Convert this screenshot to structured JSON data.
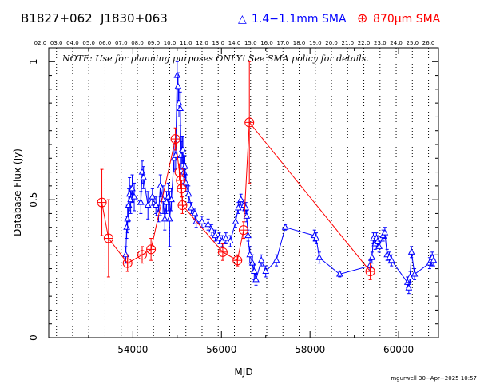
{
  "header": {
    "source_name": "B1827+062",
    "alt_name": "J1830+063",
    "legend_blue_marker": "△",
    "legend_blue_label": "1.4−1.1mm SMA",
    "legend_red_marker": "⊕",
    "legend_red_label": "870µm SMA"
  },
  "note": "NOTE: Use for planning purposes ONLY! See SMA policy for details.",
  "footer": "mgurwell 30−Apr−2025 10:57",
  "colors": {
    "blue": "#0000ff",
    "red": "#ff0000",
    "axis": "#000000"
  },
  "chart_data": {
    "type": "scatter",
    "xlabel": "MJD",
    "ylabel": "Database Flux (Jy)",
    "xlim": [
      52100,
      60900
    ],
    "ylim": [
      0,
      1.05
    ],
    "x_ticks": [
      "54000",
      "56000",
      "58000",
      "60000"
    ],
    "x_tick_values": [
      54000,
      56000,
      58000,
      60000
    ],
    "y_ticks": [
      "0",
      "0.5",
      "1"
    ],
    "y_tick_values": [
      0,
      0.5,
      1.0
    ],
    "top_axis_labels": [
      "02.0",
      "03.0",
      "04.0",
      "05.0",
      "06.0",
      "07.0",
      "08.0",
      "09.0",
      "10.0",
      "11.0",
      "12.0",
      "13.0",
      "14.0",
      "15.0",
      "16.0",
      "17.0",
      "18.0",
      "19.0",
      "20.0",
      "21.0",
      "22.0",
      "23.0",
      "24.0",
      "25.0",
      "26.0"
    ],
    "year_lines_mjd": [
      52275,
      52640,
      53005,
      53371,
      53736,
      54101,
      54466,
      54832,
      55197,
      55562,
      55927,
      56293,
      56658,
      57023,
      57388,
      57754,
      58119,
      58484,
      58849,
      59215,
      59580,
      59945,
      60310,
      60676
    ],
    "series": [
      {
        "name": "1.4−1.1mm SMA",
        "marker": "triangle",
        "color": "#0000ff",
        "points": [
          {
            "x": 53840,
            "y": 0.3,
            "e": 0.03
          },
          {
            "x": 53860,
            "y": 0.4,
            "e": 0.04
          },
          {
            "x": 53880,
            "y": 0.43,
            "e": 0.05
          },
          {
            "x": 53905,
            "y": 0.48,
            "e": 0.06
          },
          {
            "x": 53925,
            "y": 0.52,
            "e": 0.06
          },
          {
            "x": 53950,
            "y": 0.5,
            "e": 0.05
          },
          {
            "x": 53985,
            "y": 0.54,
            "e": 0.05
          },
          {
            "x": 54030,
            "y": 0.51,
            "e": 0.05
          },
          {
            "x": 54180,
            "y": 0.49,
            "e": 0.04
          },
          {
            "x": 54210,
            "y": 0.6,
            "e": 0.04
          },
          {
            "x": 54240,
            "y": 0.58,
            "e": 0.04
          },
          {
            "x": 54340,
            "y": 0.48,
            "e": 0.05
          },
          {
            "x": 54440,
            "y": 0.51,
            "e": 0.03
          },
          {
            "x": 54520,
            "y": 0.48,
            "e": 0.03
          },
          {
            "x": 54580,
            "y": 0.45,
            "e": 0.03
          },
          {
            "x": 54620,
            "y": 0.55,
            "e": 0.04
          },
          {
            "x": 54680,
            "y": 0.5,
            "e": 0.05
          },
          {
            "x": 54720,
            "y": 0.43,
            "e": 0.04
          },
          {
            "x": 54760,
            "y": 0.49,
            "e": 0.04
          },
          {
            "x": 54800,
            "y": 0.51,
            "e": 0.05
          },
          {
            "x": 54830,
            "y": 0.43,
            "e": 0.1
          },
          {
            "x": 54870,
            "y": 0.5,
            "e": 0.04
          },
          {
            "x": 54930,
            "y": 0.65,
            "e": 0.05
          },
          {
            "x": 54965,
            "y": 0.66,
            "e": 0.05
          },
          {
            "x": 55000,
            "y": 0.95,
            "e": 0.05
          },
          {
            "x": 55020,
            "y": 0.91,
            "e": 0.05
          },
          {
            "x": 55040,
            "y": 0.85,
            "e": 0.05
          },
          {
            "x": 55070,
            "y": 0.83,
            "e": 0.06
          },
          {
            "x": 55090,
            "y": 0.66,
            "e": 0.05
          },
          {
            "x": 55110,
            "y": 0.68,
            "e": 0.05
          },
          {
            "x": 55130,
            "y": 0.68,
            "e": 0.05
          },
          {
            "x": 55150,
            "y": 0.6,
            "e": 0.04
          },
          {
            "x": 55175,
            "y": 0.62,
            "e": 0.04
          },
          {
            "x": 55200,
            "y": 0.56,
            "e": 0.03
          },
          {
            "x": 55260,
            "y": 0.52,
            "e": 0.03
          },
          {
            "x": 55320,
            "y": 0.47,
            "e": 0.02
          },
          {
            "x": 55400,
            "y": 0.45,
            "e": 0.02
          },
          {
            "x": 55430,
            "y": 0.42,
            "e": 0.02
          },
          {
            "x": 55560,
            "y": 0.42,
            "e": 0.02
          },
          {
            "x": 55700,
            "y": 0.41,
            "e": 0.02
          },
          {
            "x": 55780,
            "y": 0.39,
            "e": 0.02
          },
          {
            "x": 55860,
            "y": 0.37,
            "e": 0.02
          },
          {
            "x": 55950,
            "y": 0.36,
            "e": 0.02
          },
          {
            "x": 56020,
            "y": 0.35,
            "e": 0.02
          },
          {
            "x": 56100,
            "y": 0.36,
            "e": 0.02
          },
          {
            "x": 56200,
            "y": 0.35,
            "e": 0.02
          },
          {
            "x": 56320,
            "y": 0.42,
            "e": 0.02
          },
          {
            "x": 56380,
            "y": 0.47,
            "e": 0.02
          },
          {
            "x": 56440,
            "y": 0.5,
            "e": 0.02
          },
          {
            "x": 56510,
            "y": 0.48,
            "e": 0.02
          },
          {
            "x": 56550,
            "y": 0.47,
            "e": 0.02
          },
          {
            "x": 56570,
            "y": 0.44,
            "e": 0.02
          },
          {
            "x": 56600,
            "y": 0.37,
            "e": 0.02
          },
          {
            "x": 56640,
            "y": 0.3,
            "e": 0.03
          },
          {
            "x": 56700,
            "y": 0.27,
            "e": 0.03
          },
          {
            "x": 56740,
            "y": 0.24,
            "e": 0.03
          },
          {
            "x": 56780,
            "y": 0.21,
            "e": 0.02
          },
          {
            "x": 56900,
            "y": 0.28,
            "e": 0.02
          },
          {
            "x": 57000,
            "y": 0.24,
            "e": 0.02
          },
          {
            "x": 57240,
            "y": 0.28,
            "e": 0.02
          },
          {
            "x": 57440,
            "y": 0.4,
            "e": 0.01
          },
          {
            "x": 58100,
            "y": 0.37,
            "e": 0.02
          },
          {
            "x": 58140,
            "y": 0.36,
            "e": 0.02
          },
          {
            "x": 58210,
            "y": 0.29,
            "e": 0.02
          },
          {
            "x": 58670,
            "y": 0.23,
            "e": 0.01
          },
          {
            "x": 59350,
            "y": 0.26,
            "e": 0.02
          },
          {
            "x": 59400,
            "y": 0.29,
            "e": 0.02
          },
          {
            "x": 59430,
            "y": 0.36,
            "e": 0.02
          },
          {
            "x": 59470,
            "y": 0.34,
            "e": 0.02
          },
          {
            "x": 59500,
            "y": 0.36,
            "e": 0.02
          },
          {
            "x": 59530,
            "y": 0.35,
            "e": 0.02
          },
          {
            "x": 59560,
            "y": 0.33,
            "e": 0.02
          },
          {
            "x": 59650,
            "y": 0.37,
            "e": 0.02
          },
          {
            "x": 59690,
            "y": 0.38,
            "e": 0.02
          },
          {
            "x": 59740,
            "y": 0.3,
            "e": 0.02
          },
          {
            "x": 59790,
            "y": 0.29,
            "e": 0.02
          },
          {
            "x": 59840,
            "y": 0.28,
            "e": 0.02
          },
          {
            "x": 60200,
            "y": 0.2,
            "e": 0.02
          },
          {
            "x": 60230,
            "y": 0.18,
            "e": 0.02
          },
          {
            "x": 60260,
            "y": 0.22,
            "e": 0.02
          },
          {
            "x": 60290,
            "y": 0.31,
            "e": 0.02
          },
          {
            "x": 60360,
            "y": 0.23,
            "e": 0.02
          },
          {
            "x": 60700,
            "y": 0.27,
            "e": 0.02
          },
          {
            "x": 60730,
            "y": 0.28,
            "e": 0.02
          },
          {
            "x": 60760,
            "y": 0.29,
            "e": 0.02
          },
          {
            "x": 60790,
            "y": 0.28,
            "e": 0.02
          }
        ]
      },
      {
        "name": "870µm SMA",
        "marker": "circle-plus",
        "color": "#ff0000",
        "points": [
          {
            "x": 53300,
            "y": 0.49,
            "e": 0.12
          },
          {
            "x": 53450,
            "y": 0.36,
            "e": 0.14
          },
          {
            "x": 53880,
            "y": 0.27,
            "e": 0.03
          },
          {
            "x": 54210,
            "y": 0.3,
            "e": 0.03
          },
          {
            "x": 54410,
            "y": 0.32,
            "e": 0.04
          },
          {
            "x": 54960,
            "y": 0.72,
            "e": 0.04
          },
          {
            "x": 55050,
            "y": 0.6,
            "e": 0.03
          },
          {
            "x": 55080,
            "y": 0.57,
            "e": 0.03
          },
          {
            "x": 55100,
            "y": 0.54,
            "e": 0.03
          },
          {
            "x": 55120,
            "y": 0.48,
            "e": 0.03
          },
          {
            "x": 56030,
            "y": 0.31,
            "e": 0.03
          },
          {
            "x": 56360,
            "y": 0.28,
            "e": 0.02
          },
          {
            "x": 56500,
            "y": 0.39,
            "e": 0.03
          },
          {
            "x": 56630,
            "y": 0.78,
            "e": 0.22
          },
          {
            "x": 59360,
            "y": 0.24,
            "e": 0.03
          }
        ]
      }
    ]
  }
}
